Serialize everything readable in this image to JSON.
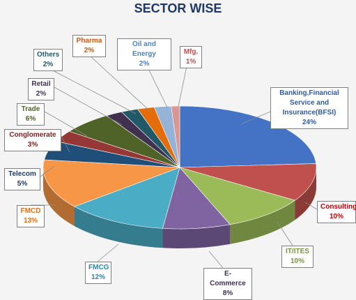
{
  "chart_data": {
    "type": "pie",
    "title": "SECTOR WISE",
    "slices": [
      {
        "label": "Banking,Financial Service and Insurance(BFSI)",
        "value": 24,
        "display": "24%",
        "color": "#4472c4",
        "label_color": "#2e5aa8"
      },
      {
        "label": "Consulting",
        "value": 10,
        "display": "10%",
        "color": "#c0504d",
        "label_color": "#c00000"
      },
      {
        "label": "IT/ITES",
        "value": 10,
        "display": "10%",
        "color": "#9bbb59",
        "label_color": "#77933c"
      },
      {
        "label": "E-Commerce",
        "value": 8,
        "display": "8%",
        "color": "#8064a2",
        "label_color": "#403152"
      },
      {
        "label": "FMCG",
        "value": 12,
        "display": "12%",
        "color": "#4bacc6",
        "label_color": "#2f86a4"
      },
      {
        "label": "FMCD",
        "value": 13,
        "display": "13%",
        "color": "#f79646",
        "label_color": "#e46c0a"
      },
      {
        "label": "Telecom",
        "value": 5,
        "display": "5%",
        "color": "#1f4e79",
        "label_color": "#1f3864"
      },
      {
        "label": "Conglomerate",
        "value": 3,
        "display": "3%",
        "color": "#953735",
        "label_color": "#7f1f1f"
      },
      {
        "label": "Trade",
        "value": 6,
        "display": "6%",
        "color": "#4f6228",
        "label_color": "#4f6228"
      },
      {
        "label": "Retail",
        "value": 2,
        "display": "2%",
        "color": "#403151",
        "label_color": "#403151"
      },
      {
        "label": "Others",
        "value": 2,
        "display": "2%",
        "color": "#215968",
        "label_color": "#215968"
      },
      {
        "label": "Pharma",
        "value": 2,
        "display": "2%",
        "color": "#e46c0a",
        "label_color": "#c55a11"
      },
      {
        "label": "Oil and Energy",
        "value": 2,
        "display": "2%",
        "color": "#95b3d7",
        "label_color": "#4f81bd"
      },
      {
        "label": "Mfg.",
        "value": 1,
        "display": "1%",
        "color": "#d99694",
        "label_color": "#c0504d"
      }
    ]
  }
}
